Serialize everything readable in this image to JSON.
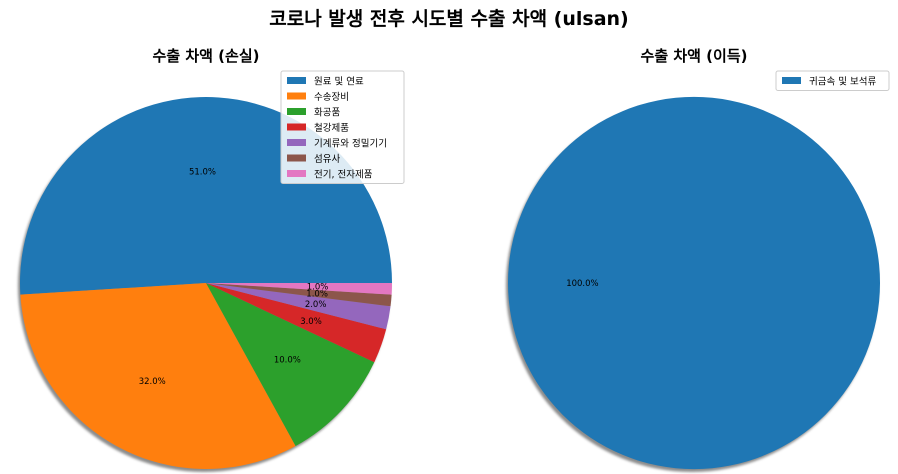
{
  "title": "코로나 발생 전후 시도별 수출 차액 (ulsan)",
  "chart_data": [
    {
      "type": "pie",
      "title": "수출 차액 (손실)",
      "categories": [
        "원료 및 연료",
        "수송장비",
        "화공품",
        "철강제품",
        "기계류와 정밀기기",
        "섬유사",
        "전기, 전자제품"
      ],
      "values": [
        51.0,
        32.0,
        10.0,
        3.0,
        2.0,
        1.0,
        1.0
      ],
      "labels": [
        "51.0%",
        "32.0%",
        "10.0%",
        "3.0%",
        "2.0%",
        "1.0%",
        "1.0%"
      ],
      "colors": [
        "#1f77b4",
        "#ff7f0e",
        "#2ca02c",
        "#d62728",
        "#9467bd",
        "#8c564b",
        "#e377c2"
      ],
      "legend": "top-right",
      "shadow": true
    },
    {
      "type": "pie",
      "title": "수출 차액 (이득)",
      "categories": [
        "귀금속 및 보석류"
      ],
      "values": [
        100.0
      ],
      "labels": [
        "100.0%"
      ],
      "colors": [
        "#1f77b4"
      ],
      "legend": "top-right",
      "shadow": true
    }
  ]
}
